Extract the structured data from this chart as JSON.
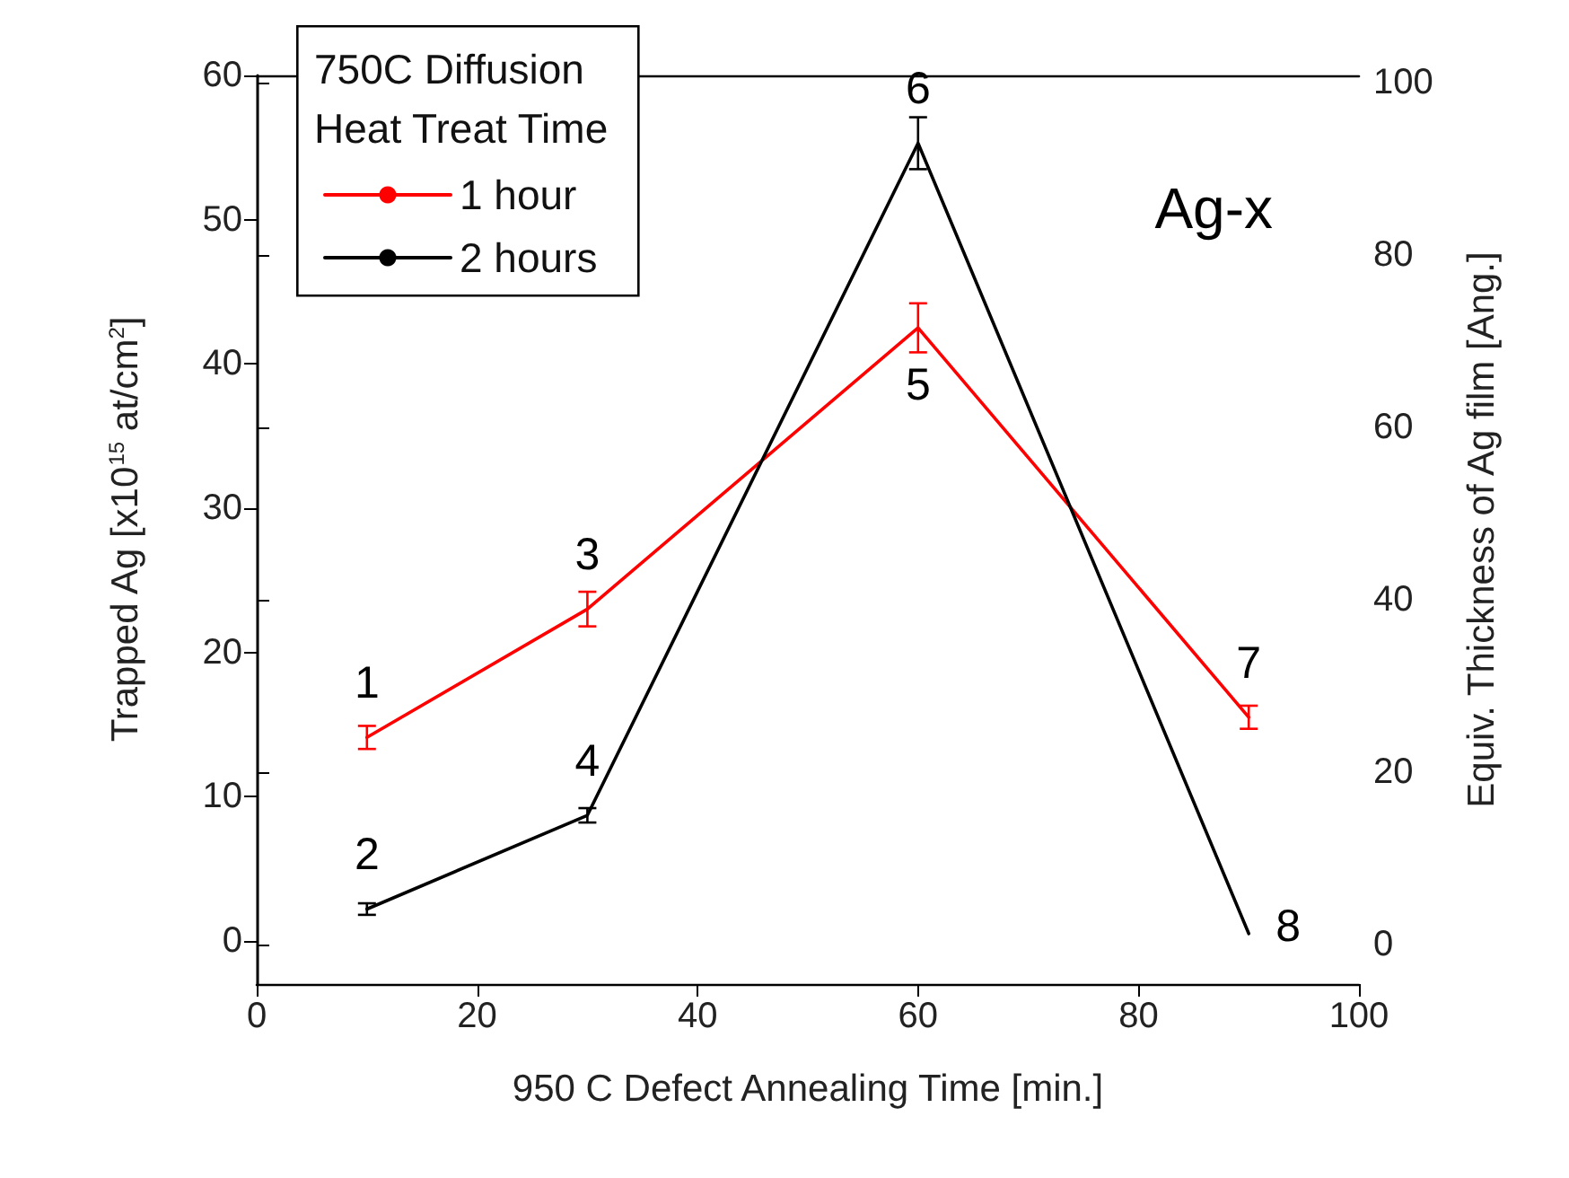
{
  "chart_data": {
    "type": "line",
    "xlabel": "950 C Defect Annealing Time [min.]",
    "ylabel": "Trapped Ag [x10$^{15}$ at/cm$^{2}$]",
    "y2label": "Equiv. Thickness of Ag film [Ang.]",
    "legend_title": "750C Diffusion\nHeat Treat Time",
    "legend": "top left",
    "grid": false,
    "marker": "none",
    "line_style": "solid",
    "x": [
      10,
      30,
      60,
      90
    ],
    "series": [
      {
        "name": "1 hour",
        "color": "#ff0000",
        "values": [
          14.1,
          23.0,
          42.5,
          15.5
        ],
        "errors": [
          0.8,
          1.2,
          1.7,
          0.8
        ]
      },
      {
        "name": "2 hours",
        "color": "#000000",
        "values": [
          2.2,
          8.7,
          55.3,
          0.5
        ],
        "errors": [
          0.4,
          0.5,
          1.8,
          null
        ]
      }
    ],
    "xlim": [
      0,
      100
    ],
    "xticks": [
      0,
      20,
      40,
      60,
      80,
      100
    ],
    "ylim": [
      -3,
      60
    ],
    "yticks": [
      0,
      10,
      20,
      30,
      40,
      50,
      60
    ],
    "y2lim": [
      -4.6,
      100.8
    ],
    "y2ticks": [
      0,
      20,
      40,
      60,
      80,
      100
    ],
    "annotations": [
      {
        "text": "1",
        "x": 10,
        "y": 14.1
      },
      {
        "text": "2",
        "x": 10,
        "y": 2.2
      },
      {
        "text": "3",
        "x": 30,
        "y": 23.0
      },
      {
        "text": "4",
        "x": 30,
        "y": 8.7
      },
      {
        "text": "5",
        "x": 60,
        "y": 42.5
      },
      {
        "text": "6",
        "x": 60,
        "y": 55.3
      },
      {
        "text": "7",
        "x": 90,
        "y": 15.5
      },
      {
        "text": "8",
        "x": 90,
        "y": 0.5
      },
      "Ag-x"
    ]
  }
}
